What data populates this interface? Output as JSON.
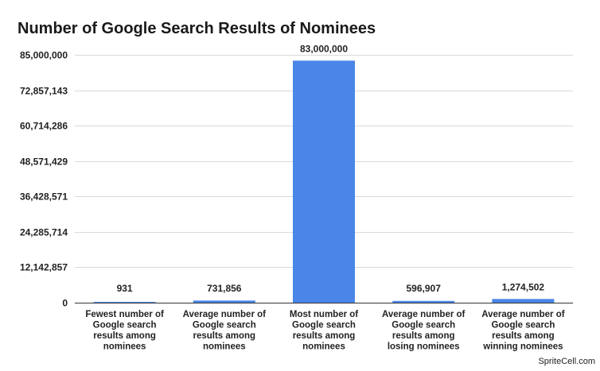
{
  "chart_data": {
    "type": "bar",
    "title": "Number of Google Search Results of Nominees",
    "categories": [
      [
        "Fewest number of",
        "Google search",
        "results among",
        "nominees"
      ],
      [
        "Average number of",
        "Google search",
        "results among",
        "nominees"
      ],
      [
        "Most number of",
        "Google search",
        "results among",
        "nominees"
      ],
      [
        "Average number of",
        "Google search",
        "results among",
        "losing nominees"
      ],
      [
        "Average number of",
        "Google search",
        "results among",
        "winning nominees"
      ]
    ],
    "values": [
      931,
      731856,
      83000000,
      596907,
      1274502
    ],
    "data_labels": [
      "931",
      "731,856",
      "83,000,000",
      "596,907",
      "1,274,502"
    ],
    "yticks": [
      0,
      12142857,
      24285714,
      36428571,
      48571429,
      60714286,
      72857143,
      85000000
    ],
    "ytick_labels": [
      "0",
      "12,142,857",
      "24,285,714",
      "36,428,571",
      "48,571,429",
      "60,714,286",
      "72,857,143",
      "85,000,000"
    ],
    "ylim": [
      0,
      85000000
    ],
    "grid": true,
    "legend": "none",
    "colors": {
      "bar": "#4a86e8"
    }
  },
  "watermark": "SpriteCell.com"
}
